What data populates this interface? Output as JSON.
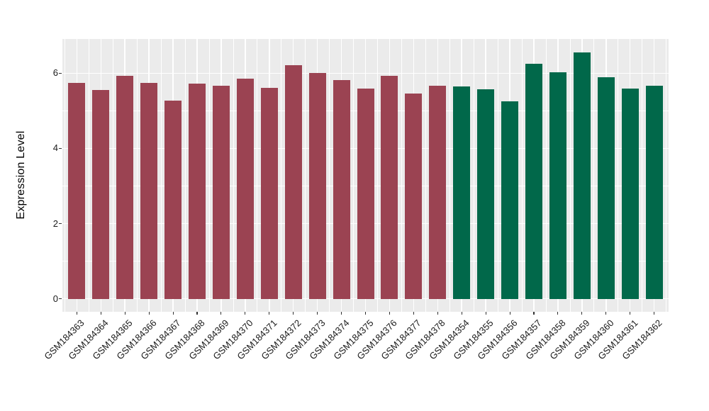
{
  "figure": {
    "background": "#FFFFFF",
    "panel_background": "#EBEBEB",
    "grid_color": "#FFFFFF",
    "axis_text_color": "#1a1a1a",
    "axis_title_color": "#000000",
    "tick_color": "#333333"
  },
  "chart_data": {
    "type": "bar",
    "title": "",
    "xlabel": "",
    "ylabel": "Expression Level",
    "ylim": [
      -0.345,
      6.91
    ],
    "yticks": [
      0,
      2,
      4,
      6
    ],
    "ytick_labels": [
      "0",
      "2",
      "4",
      "6"
    ],
    "yticks_minor": [
      1,
      3,
      5
    ],
    "grid": true,
    "legend": false,
    "bar_width_frac": 0.71,
    "series": [
      {
        "name": "group-red",
        "color": "#9B4352",
        "categories": [
          "GSM184363",
          "GSM184364",
          "GSM184365",
          "GSM184366",
          "GSM184367",
          "GSM184368",
          "GSM184369",
          "GSM184370",
          "GSM184371",
          "GSM184372",
          "GSM184373",
          "GSM184374",
          "GSM184375",
          "GSM184376",
          "GSM184377",
          "GSM184378"
        ],
        "values": [
          5.74,
          5.56,
          5.94,
          5.74,
          5.27,
          5.73,
          5.66,
          5.85,
          5.62,
          6.21,
          6.0,
          5.82,
          5.59,
          5.93,
          5.46,
          5.67
        ]
      },
      {
        "name": "group-green",
        "color": "#01684A",
        "categories": [
          "GSM184354",
          "GSM184355",
          "GSM184356",
          "GSM184357",
          "GSM184358",
          "GSM184359",
          "GSM184360",
          "GSM184361",
          "GSM184362"
        ],
        "values": [
          5.65,
          5.57,
          5.25,
          6.26,
          6.03,
          6.56,
          5.89,
          5.59,
          5.67
        ]
      }
    ]
  }
}
